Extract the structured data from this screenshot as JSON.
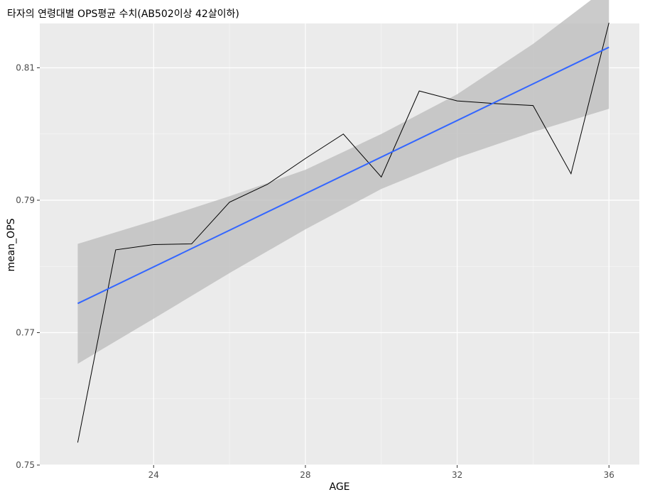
{
  "chart_data": {
    "type": "line",
    "title": "타자의 연령대별 OPS평균 수치(AB502이상 42살이하)",
    "xlabel": "AGE",
    "ylabel": "mean_OPS",
    "xlim": [
      21.0,
      36.8
    ],
    "ylim": [
      0.75,
      0.8167
    ],
    "x_ticks": [
      24,
      28,
      32,
      36
    ],
    "x_tick_labels": [
      "24",
      "28",
      "32",
      "36"
    ],
    "y_ticks": [
      0.75,
      0.77,
      0.79,
      0.81
    ],
    "y_tick_labels": [
      "0.75",
      "0.77",
      "0.79",
      "0.81"
    ],
    "grid": true,
    "background": "#ebebeb",
    "series": [
      {
        "x": [
          22,
          23,
          24,
          25,
          26,
          27,
          28,
          29,
          30,
          31,
          32,
          33,
          34,
          35,
          36
        ],
        "y": [
          0.7534,
          0.7825,
          0.7833,
          0.7834,
          0.7897,
          0.7924,
          0.7963,
          0.8,
          0.7935,
          0.8065,
          0.805,
          0.8046,
          0.8043,
          0.794,
          0.8168
        ],
        "color": "#000000"
      }
    ],
    "trend": {
      "method": "linear fit",
      "x": [
        22,
        36
      ],
      "y": [
        0.7744,
        0.8131
      ],
      "color": "#3366ff",
      "band": {
        "x": [
          22,
          24,
          26,
          28,
          30,
          32,
          34,
          36
        ],
        "lower": [
          0.7653,
          0.7721,
          0.779,
          0.7856,
          0.7917,
          0.7964,
          0.8003,
          0.8038
        ],
        "upper": [
          0.7834,
          0.7869,
          0.7906,
          0.7946,
          0.8,
          0.806,
          0.8136,
          0.8223
        ],
        "color": "#bebebe"
      }
    }
  }
}
